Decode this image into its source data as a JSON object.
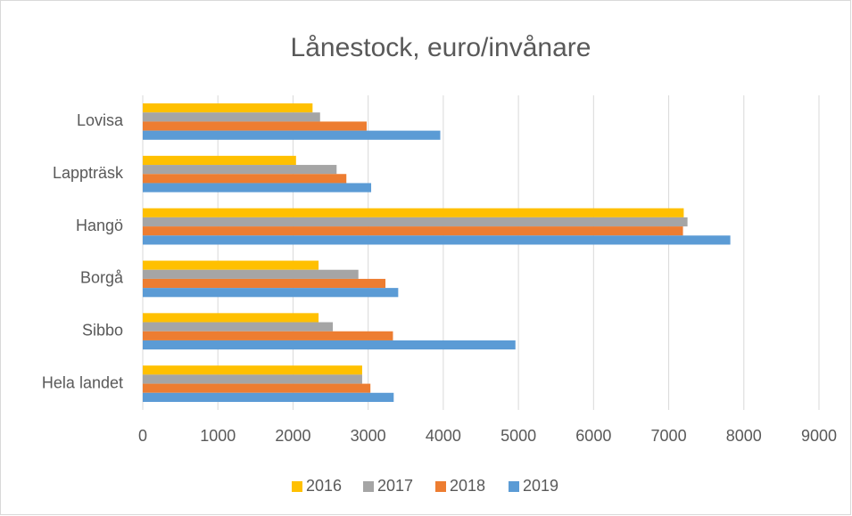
{
  "chart_data": {
    "type": "bar",
    "orientation": "horizontal",
    "title": "Lånestock, euro/invånare",
    "categories": [
      "Lovisa",
      "Lappträsk",
      "Hangö",
      "Borgå",
      "Sibbo",
      "Hela landet"
    ],
    "series": [
      {
        "name": "2016",
        "color": "#ffc000",
        "values": [
          2260,
          2040,
          7200,
          2340,
          2340,
          2920
        ]
      },
      {
        "name": "2017",
        "color": "#a5a5a5",
        "values": [
          2360,
          2580,
          7250,
          2870,
          2530,
          2920
        ]
      },
      {
        "name": "2018",
        "color": "#ed7d31",
        "values": [
          2980,
          2710,
          7190,
          3230,
          3330,
          3030
        ]
      },
      {
        "name": "2019",
        "color": "#5b9bd5",
        "values": [
          3960,
          3040,
          7820,
          3400,
          4960,
          3340
        ]
      }
    ],
    "xlim": [
      0,
      9000
    ],
    "xticks": [
      0,
      1000,
      2000,
      3000,
      4000,
      5000,
      6000,
      7000,
      8000,
      9000
    ],
    "grid": true,
    "legend": "bottom"
  }
}
